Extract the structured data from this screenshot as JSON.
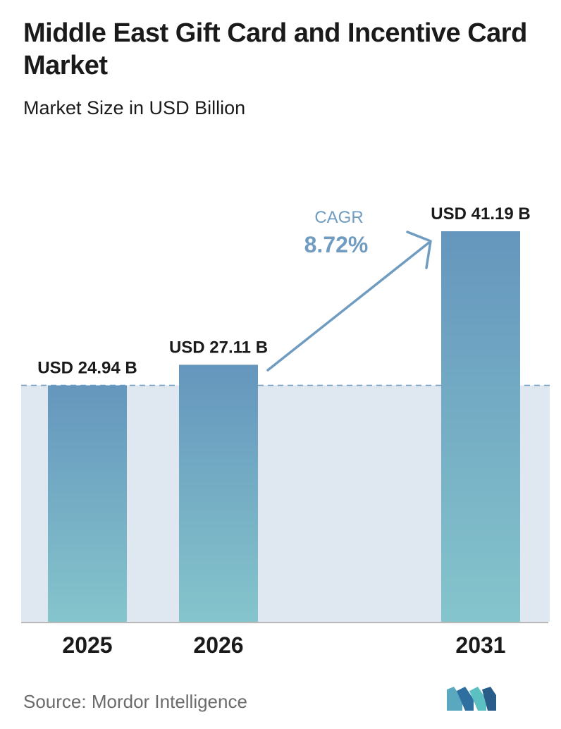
{
  "title": "Middle East Gift Card and Incentive Card Market",
  "subtitle": "Market Size in USD Billion",
  "source": "Source:  Mordor Intelligence",
  "colors": {
    "bar_top": "#6596bd",
    "bar_bottom": "#85c5cc",
    "band": "#dfe8f0",
    "accent": "#6f9cc0",
    "axis": "#b8b8b8"
  },
  "logo_icon": "mordor-intelligence-logo-icon",
  "chart_data": {
    "type": "bar",
    "title": "Middle East Gift Card and Incentive Card Market",
    "subtitle": "Market Size in USD Billion",
    "categories": [
      "2025",
      "2026",
      "2031"
    ],
    "values": [
      24.94,
      27.11,
      41.19
    ],
    "value_labels": [
      "USD 24.94 B",
      "USD 27.11 B",
      "USD 41.19 B"
    ],
    "unit": "USD Billion",
    "annotation": {
      "label": "CAGR",
      "value": "8.72%"
    },
    "grid": false
  }
}
